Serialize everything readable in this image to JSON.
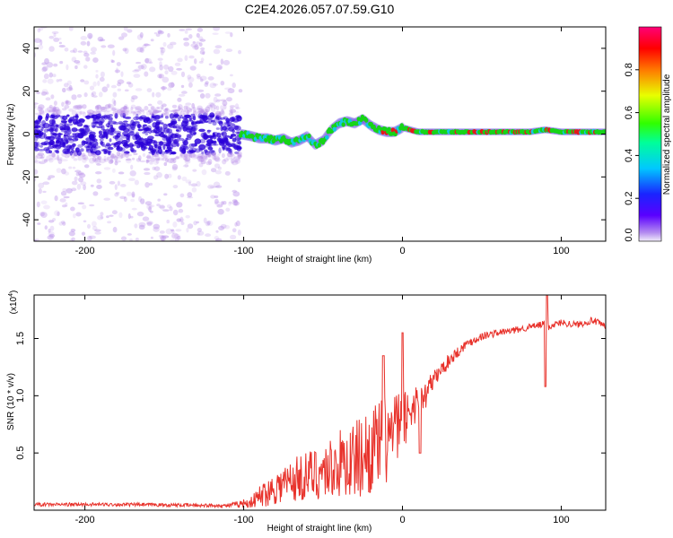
{
  "title": "C2E4.2026.057.07.59.G10",
  "colors": {
    "line": "#e8322b",
    "spectrum_core": "#2a00d8",
    "spectrum_scatter": "#b58ae8",
    "ridge_green": "#16d418",
    "ridge_red": "#e41a1a",
    "ridge_cyan": "#14c8e0"
  },
  "chart_data": [
    {
      "type": "heatmap",
      "name": "spectrogram",
      "xlabel": "Height of straight line (km)",
      "ylabel": "Frequency (Hz)",
      "xlim": [
        -232,
        128
      ],
      "ylim": [
        -50,
        50
      ],
      "x_ticks": [
        -200,
        -100,
        0,
        100
      ],
      "y_ticks": [
        -40,
        -20,
        0,
        20,
        40
      ],
      "noise_region_x": [
        -232,
        -102
      ],
      "ridge": {
        "x": [
          -102,
          -95,
          -90,
          -85,
          -80,
          -75,
          -70,
          -65,
          -60,
          -55,
          -50,
          -45,
          -40,
          -35,
          -30,
          -25,
          -20,
          -15,
          -10,
          -5,
          0,
          10,
          20,
          40,
          60,
          80,
          90,
          100,
          128
        ],
        "freq": [
          0,
          -1,
          -2,
          -2,
          -3,
          -2,
          -4,
          -3,
          -1,
          -5,
          -3,
          2,
          5,
          6,
          5,
          7,
          4,
          2,
          1,
          1,
          3,
          1,
          1,
          1,
          1,
          1,
          2,
          1,
          1
        ]
      },
      "colorbar": {
        "label": "Normalized spectral amplitude",
        "ticks": [
          "0.2",
          "0.4",
          "0.6",
          "0.8"
        ],
        "tick_values": [
          0.2,
          0.4,
          0.6,
          0.8
        ],
        "bottom_label": "0.0",
        "range": [
          0,
          1
        ]
      }
    },
    {
      "type": "line",
      "name": "snr",
      "xlabel": "Height of straight line (km)",
      "ylabel": "SNR (10 * v/v)",
      "y_multiplier": "(x10",
      "y_multiplier_exp": "4",
      "y_multiplier_close": ")",
      "xlim": [
        -232,
        128
      ],
      "ylim": [
        0,
        1.88
      ],
      "x_ticks": [
        -200,
        -100,
        0,
        100
      ],
      "y_ticks": [
        0.5,
        1.0,
        1.5
      ],
      "y_tick_labels": [
        "0.5",
        "1.0",
        "1.5"
      ],
      "series": [
        {
          "name": "SNR",
          "x": [
            -232,
            -180,
            -110,
            -95,
            -90,
            -80,
            -70,
            -60,
            -50,
            -40,
            -30,
            -20,
            -10,
            0,
            5,
            10,
            12,
            20,
            30,
            40,
            50,
            60,
            70,
            80,
            88,
            90,
            92,
            95,
            100,
            110,
            120,
            128
          ],
          "avg": [
            0.05,
            0.05,
            0.04,
            0.07,
            0.12,
            0.2,
            0.26,
            0.3,
            0.34,
            0.4,
            0.44,
            0.52,
            0.62,
            0.75,
            0.88,
            0.96,
            0.95,
            1.15,
            1.32,
            1.45,
            1.52,
            1.55,
            1.57,
            1.6,
            1.62,
            1.65,
            1.6,
            1.62,
            1.64,
            1.62,
            1.66,
            1.6
          ],
          "amp": [
            0.015,
            0.015,
            0.015,
            0.05,
            0.1,
            0.15,
            0.2,
            0.22,
            0.25,
            0.3,
            0.35,
            0.38,
            0.4,
            0.3,
            0.2,
            0.15,
            0.15,
            0.08,
            0.06,
            0.04,
            0.035,
            0.03,
            0.03,
            0.03,
            0.03,
            0.05,
            0.03,
            0.03,
            0.03,
            0.03,
            0.03,
            0.03
          ],
          "extrema": [
            {
              "x": 11,
              "y": 0.5
            },
            {
              "x": 90,
              "y": 1.08
            },
            {
              "x": 91,
              "y": 1.88
            },
            {
              "x": -12,
              "y": 1.35
            },
            {
              "x": 0,
              "y": 1.55
            }
          ]
        }
      ]
    }
  ]
}
